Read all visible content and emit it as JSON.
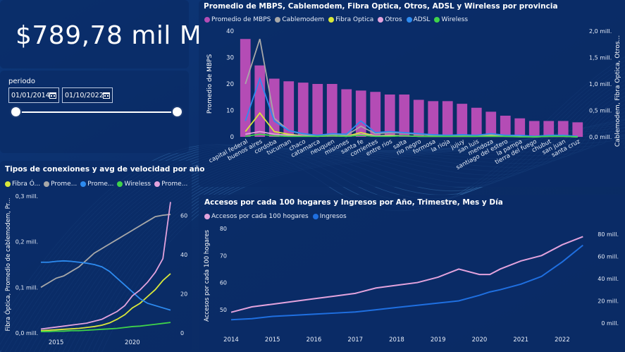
{
  "kpi": {
    "value": "$789,78 mil M"
  },
  "filter": {
    "label": "periodo",
    "start_date": "01/01/2014",
    "end_date": "01/10/2022"
  },
  "colors": {
    "mbps": "#b44cb5",
    "cablemodem": "#a8a8a8",
    "fibra": "#d9e83a",
    "otros": "#e3a3dd",
    "adsl": "#2d8bf0",
    "wireless": "#3fd34a",
    "accesos": "#e3a3dd",
    "ingresos": "#1f6fe0"
  },
  "chart1": {
    "title": "Promedio de MBPS, Cablemodem, Fibra Optica, Otros, ADSL y Wireless por provincia",
    "legend": [
      "Promedio de MBPS",
      "Cablemodem",
      "Fibra Optica",
      "Otros",
      "ADSL",
      "Wireless"
    ],
    "ylabel_left": "Promedio de MBPS",
    "ylabel_right": "Cablemodem, Fibra Optica, Otros...",
    "left_ticks": [
      "40",
      "30",
      "20",
      "10",
      "0"
    ],
    "right_ticks": [
      "2,0 mill.",
      "1,5 mill.",
      "1,0 mill.",
      "0,5 mill.",
      "0,0 mill."
    ]
  },
  "chart2": {
    "title": "Tipos de conexiones y avg de velocidad por año",
    "legend": [
      "Fibra Ó...",
      "Prome...",
      "Prome...",
      "Wireless",
      "Prome..."
    ],
    "ylabel_left": "Fibra Óptica, Promedio de cablemodem, Pr...",
    "left_ticks": [
      "0,3 mill.",
      "0,2 mill.",
      "0,1 mill.",
      "0,0 mill."
    ],
    "right_ticks": [
      "60",
      "40",
      "20",
      "0"
    ],
    "x_ticks": [
      "2015",
      "2020"
    ]
  },
  "chart3": {
    "title": "Accesos por cada 100 hogares y Ingresos por Año, Trimestre, Mes y Día",
    "legend": [
      "Accesos por cada 100 hogares",
      "Ingresos"
    ],
    "ylabel_left": "Accesos por cada 100 hogares",
    "left_ticks": [
      "80",
      "70",
      "60",
      "50"
    ],
    "right_ticks": [
      "80 mill.",
      "60 mill.",
      "40 mill.",
      "20 mill.",
      "0 mill."
    ],
    "x_ticks": [
      "2014",
      "2015",
      "2016",
      "2017",
      "2018",
      "2019",
      "2020",
      "2021",
      "2022"
    ]
  },
  "chart_data": [
    {
      "type": "bar",
      "title": "Promedio de MBPS, Cablemodem, Fibra Optica, Otros, ADSL y Wireless por provincia",
      "categories": [
        "capital federal",
        "buenos aires",
        "cordoba",
        "tucuman",
        "chaco",
        "catamarca",
        "neuquen",
        "misiones",
        "santa fe",
        "corrientes",
        "entre rios",
        "salta",
        "rio negro",
        "formosa",
        "la rioja",
        "jujuy",
        "san luis",
        "mendoza",
        "santiago del estero",
        "la pampa",
        "tierra del fuego",
        "chubut",
        "san juan",
        "santa cruz"
      ],
      "ylabel": "Promedio de MBPS",
      "ylim": [
        0,
        40
      ],
      "series": [
        {
          "name": "Promedio de MBPS",
          "axis": "left",
          "values": [
            37,
            27,
            22,
            21,
            20.5,
            20,
            20,
            18,
            17.5,
            17,
            16,
            16,
            14,
            13.5,
            13.5,
            12.5,
            11,
            9.5,
            8,
            7,
            6,
            6,
            6,
            5.5
          ]
        },
        {
          "name": "Cablemodem",
          "axis": "right",
          "values": [
            1.0,
            1.85,
            0.35,
            0.12,
            0.05,
            0.02,
            0.05,
            0.03,
            0.2,
            0.06,
            0.08,
            0.07,
            0.05,
            0.03,
            0.02,
            0.03,
            0.02,
            0.04,
            0.02,
            0.02,
            0.01,
            0.02,
            0.02,
            0.01
          ]
        },
        {
          "name": "Fibra Optica",
          "axis": "right",
          "values": [
            0.1,
            0.45,
            0.1,
            0.05,
            0.02,
            0.01,
            0.02,
            0.01,
            0.08,
            0.02,
            0.03,
            0.02,
            0.01,
            0.01,
            0.01,
            0.01,
            0.01,
            0.02,
            0.01,
            0.01,
            0.0,
            0.01,
            0.01,
            0.0
          ]
        },
        {
          "name": "Otros",
          "axis": "right",
          "values": [
            0.05,
            0.1,
            0.05,
            0.03,
            0.02,
            0.01,
            0.02,
            0.01,
            0.04,
            0.02,
            0.02,
            0.02,
            0.01,
            0.01,
            0.01,
            0.01,
            0.01,
            0.01,
            0.01,
            0.01,
            0.0,
            0.01,
            0.01,
            0.0
          ]
        },
        {
          "name": "ADSL",
          "axis": "right",
          "values": [
            0.3,
            1.1,
            0.3,
            0.12,
            0.06,
            0.03,
            0.06,
            0.05,
            0.3,
            0.08,
            0.1,
            0.08,
            0.06,
            0.04,
            0.03,
            0.04,
            0.03,
            0.06,
            0.03,
            0.03,
            0.01,
            0.03,
            0.03,
            0.01
          ]
        },
        {
          "name": "Wireless",
          "axis": "right",
          "values": [
            0.01,
            0.05,
            0.02,
            0.01,
            0.01,
            0.01,
            0.02,
            0.01,
            0.03,
            0.01,
            0.01,
            0.02,
            0.01,
            0.01,
            0.01,
            0.01,
            0.01,
            0.01,
            0.01,
            0.0,
            0.0,
            0.01,
            0.01,
            0.0
          ]
        }
      ]
    },
    {
      "type": "line",
      "title": "Tipos de conexiones y avg de velocidad por año",
      "x": [
        2014,
        2014.5,
        2015,
        2015.5,
        2016,
        2016.5,
        2017,
        2017.5,
        2018,
        2018.5,
        2019,
        2019.5,
        2020,
        2020.5,
        2021,
        2021.5,
        2022,
        2022.5
      ],
      "xlim": [
        2014,
        2022.5
      ],
      "ylim_left": [
        0,
        0.3
      ],
      "ylim_right": [
        0,
        70
      ],
      "series": [
        {
          "name": "Fibra Óptica",
          "axis": "left",
          "values": [
            0.005,
            0.006,
            0.007,
            0.008,
            0.009,
            0.01,
            0.012,
            0.014,
            0.017,
            0.022,
            0.03,
            0.04,
            0.055,
            0.065,
            0.08,
            0.095,
            0.115,
            0.13
          ]
        },
        {
          "name": "Promedio de cablemodem",
          "axis": "left",
          "values": [
            0.1,
            0.11,
            0.12,
            0.125,
            0.135,
            0.145,
            0.16,
            0.175,
            0.185,
            0.195,
            0.205,
            0.215,
            0.225,
            0.235,
            0.245,
            0.255,
            0.258,
            0.26
          ]
        },
        {
          "name": "Promedio de ADSL",
          "axis": "left",
          "values": [
            0.155,
            0.155,
            0.157,
            0.158,
            0.157,
            0.155,
            0.153,
            0.15,
            0.145,
            0.135,
            0.12,
            0.105,
            0.09,
            0.075,
            0.065,
            0.06,
            0.055,
            0.05
          ]
        },
        {
          "name": "Wireless",
          "axis": "left",
          "values": [
            0.003,
            0.003,
            0.004,
            0.004,
            0.005,
            0.005,
            0.006,
            0.007,
            0.008,
            0.009,
            0.01,
            0.012,
            0.014,
            0.015,
            0.017,
            0.019,
            0.021,
            0.023
          ]
        },
        {
          "name": "Promedio de MBPS",
          "axis": "right",
          "values": [
            2,
            2.5,
            3,
            3.5,
            4,
            4.5,
            5,
            6,
            7,
            9,
            11,
            14,
            19,
            22,
            26,
            31,
            38,
            67
          ]
        }
      ]
    },
    {
      "type": "line",
      "title": "Accesos por cada 100 hogares y Ingresos por Año, Trimestre, Mes y Día",
      "x": [
        2014,
        2014.5,
        2015,
        2015.5,
        2016,
        2016.5,
        2017,
        2017.5,
        2018,
        2018.5,
        2019,
        2019.5,
        2020,
        2020.25,
        2020.5,
        2021,
        2021.5,
        2022,
        2022.5
      ],
      "xlim": [
        2014,
        2022.75
      ],
      "ylim_left": [
        45,
        80
      ],
      "ylim_right": [
        0,
        85
      ],
      "series": [
        {
          "name": "Accesos por cada 100 hogares",
          "axis": "left",
          "values": [
            49,
            51,
            52,
            53,
            54,
            55,
            56,
            58,
            59,
            60,
            62,
            65,
            63,
            63,
            65,
            68,
            70,
            74,
            77
          ]
        },
        {
          "name": "Ingresos",
          "axis": "right",
          "values": [
            3,
            4,
            6,
            7,
            8,
            9,
            10,
            12,
            14,
            16,
            18,
            20,
            25,
            28,
            30,
            35,
            42,
            55,
            70
          ]
        }
      ]
    }
  ]
}
